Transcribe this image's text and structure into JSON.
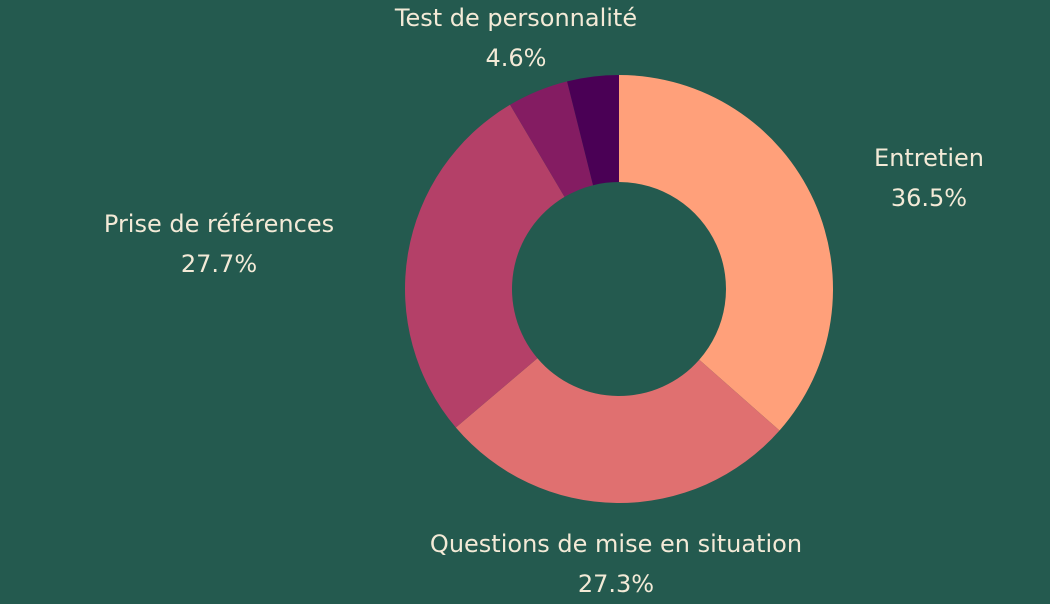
{
  "colors": {
    "background": "#245a4f",
    "label_text": "#f3ead7"
  },
  "chart_data": {
    "type": "pie",
    "variant": "donut",
    "slices": [
      {
        "label": "Entretien",
        "value": 36.5,
        "display": "36.5%",
        "color": "#ffa07a"
      },
      {
        "label": "Questions de mise en situation",
        "value": 27.3,
        "display": "27.3%",
        "color": "#e07070"
      },
      {
        "label": "Prise de références",
        "value": 27.7,
        "display": "27.7%",
        "color": "#b44068"
      },
      {
        "label": "Test de personnalité",
        "value": 4.6,
        "display": "4.6%",
        "color": "#841c62"
      },
      {
        "label": "",
        "value": 3.9,
        "display": "",
        "color": "#4a0055"
      }
    ]
  }
}
